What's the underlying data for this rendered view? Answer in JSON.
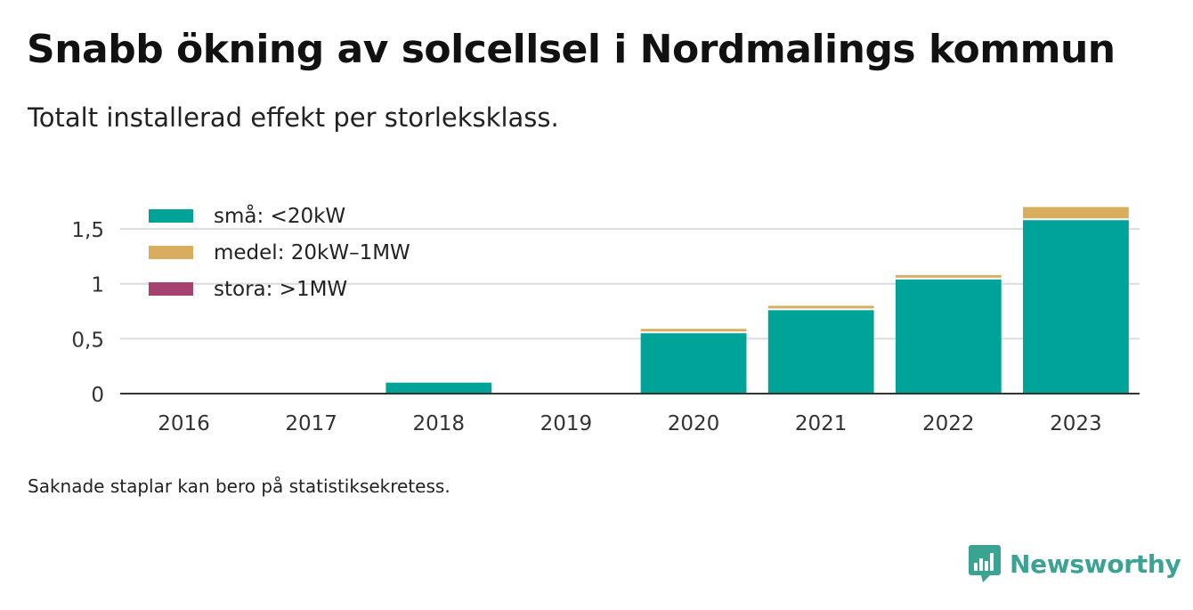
{
  "title": "Snabb ökning av solcellsel i Nordmalings kommun",
  "subtitle": "Totalt installerad effekt per storleksklass.",
  "footnote": "Saknade staplar kan bero på statistiksekretess.",
  "brand": {
    "name": "Newsworthy",
    "icon": "newsworthy-logo-icon",
    "color": "#3aa394"
  },
  "chart_data": {
    "type": "bar",
    "stacked": true,
    "categories": [
      "2016",
      "2017",
      "2018",
      "2019",
      "2020",
      "2021",
      "2022",
      "2023"
    ],
    "series": [
      {
        "name": "små: <20kW",
        "color": "#00a398",
        "values": [
          0,
          0,
          0.1,
          0,
          0.55,
          0.76,
          1.04,
          1.58
        ]
      },
      {
        "name": "medel: 20kW–1MW",
        "color": "#d8ae5e",
        "values": [
          0,
          0,
          0,
          0,
          0.04,
          0.04,
          0.04,
          0.12
        ]
      },
      {
        "name": "stora: >1MW",
        "color": "#a5426f",
        "values": [
          0,
          0,
          0,
          0,
          0,
          0,
          0,
          0
        ]
      }
    ],
    "yticks": [
      "0",
      "0,5",
      "1",
      "1,5"
    ],
    "ytick_values": [
      0,
      0.5,
      1,
      1.5
    ],
    "ylim": [
      0,
      1.72
    ],
    "grid": true,
    "legend_position": "top-left"
  }
}
